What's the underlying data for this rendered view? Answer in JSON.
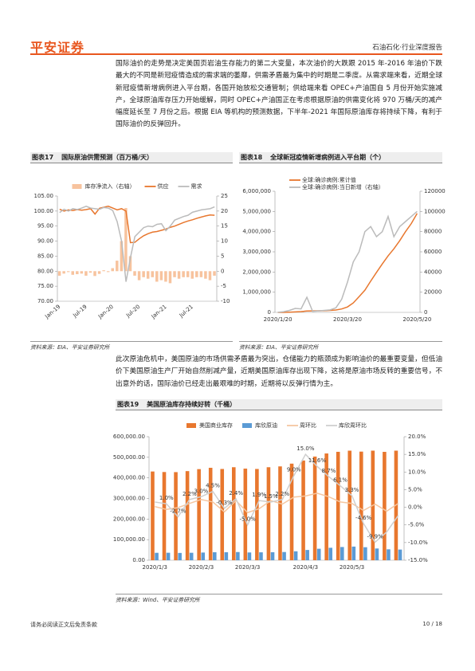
{
  "header": {
    "logo": "平安证券",
    "section": "石油石化·行业深度报告"
  },
  "paragraphs": [
    "国际油价的走势是决定美国页岩油生存能力的第二大变量，本次油价的大跌跟 2015 年-2016 年油价下跌最大的不同是新冠疫情造成的需求端的萎靡，供需矛盾最为集中的时期是二季度。从需求端来看，近期全球新冠疫情新增病例进入平台期，各国开始放松交通管制；供给端来看 OPEC+产油国自 5 月份开始实施减产，全球原油库存压力开始缓解，同时 OPEC+产油国正在考虑根据原油的供需变化将 970 万桶/天的减产幅度延长至 7 月份之后。根据 EIA 等机构的预测数据，下半年-2021 年国际原油库存将持续下降，有利于国际油价的反弹回升。",
    "此次原油危机中，美国原油的市场供需矛盾最为突出，仓储能力的瓶颈成为影响油价的最重要变量，但低油价下美国原油生产厂开始自然削减产量，近期美国原油库存出现下降，这将是原油市场反转的重要信号，不出意外的话，国际油价已经走出最艰难的时期，近期将以反弹行情为主。"
  ],
  "footer": {
    "disclaimer": "请务必阅读正文后免责条款",
    "page": "10 / 18"
  },
  "chart_data": [
    {
      "type": "combo",
      "label": "图表17",
      "title": "国际原油供需预测（百万桶/天）",
      "source": "资料来源：EIA、平安证券研究所",
      "legend": "top",
      "categories": [
        "Jan-19",
        null,
        null,
        null,
        null,
        null,
        "Jul-19",
        null,
        null,
        null,
        null,
        null,
        "Jan-20",
        null,
        null,
        null,
        null,
        null,
        "Jul-20",
        null,
        null,
        null,
        null,
        null,
        "Jan-21",
        null,
        null,
        null,
        null,
        null,
        "Jul-21",
        null,
        null,
        null,
        null,
        null
      ],
      "ylim": [
        70,
        105
      ],
      "yticks": [
        {
          "value": 70,
          "label": "70.00"
        },
        {
          "value": 75,
          "label": "75.00"
        },
        {
          "value": 80,
          "label": "80.00"
        },
        {
          "value": 85,
          "label": "85.00"
        },
        {
          "value": 90,
          "label": "90.00"
        },
        {
          "value": 95,
          "label": "95.00"
        },
        {
          "value": 100,
          "label": "100.00"
        },
        {
          "value": 105,
          "label": "105.00"
        }
      ],
      "y2lim": [
        -10,
        25
      ],
      "y2ticks": [
        -10,
        -5,
        0,
        5,
        10,
        15,
        20,
        25
      ],
      "series": [
        {
          "name": "库存净流入（右轴）",
          "type": "bar",
          "axis": "y2",
          "color": "#f7c39e",
          "values": [
            -1.5,
            -0.8,
            -0.3,
            -1.2,
            -1.0,
            -0.8,
            -1.5,
            -0.5,
            -1.6,
            -0.9,
            0.3,
            -0.3,
            1.0,
            3.5,
            10.0,
            21.0,
            5.0,
            -1.5,
            -3.0,
            -2.0,
            -2.5,
            -2.0,
            -3.5,
            -3.0,
            -3.5,
            -4.0,
            -2.0,
            -2.5,
            -2.0,
            -2.0,
            -2.5,
            -2.0,
            -2.0,
            -2.5,
            -3.0,
            -1.5
          ]
        },
        {
          "name": "供应",
          "type": "line",
          "color": "#e8772e",
          "values": [
            100.6,
            100.0,
            100.4,
            100.2,
            100.5,
            100.3,
            100.5,
            100.8,
            99.0,
            100.9,
            101.3,
            101.6,
            101.0,
            100.4,
            100.8,
            100.0,
            89.5,
            89.6,
            90.8,
            91.8,
            92.5,
            93.0,
            93.2,
            93.6,
            94.0,
            94.6,
            95.0,
            95.6,
            96.2,
            96.7,
            97.1,
            97.6,
            98.0,
            98.4,
            98.7,
            98.6
          ]
        },
        {
          "name": "需求",
          "type": "line",
          "color": "#bbbbbb",
          "values": [
            99.5,
            100.6,
            100.0,
            100.8,
            100.5,
            101.0,
            101.6,
            101.0,
            100.8,
            100.6,
            101.2,
            101.0,
            100.2,
            96.5,
            90.0,
            76.5,
            84.5,
            91.5,
            93.0,
            94.5,
            95.0,
            94.8,
            95.6,
            95.8,
            93.5,
            95.0,
            97.0,
            97.6,
            98.2,
            98.6,
            99.6,
            100.0,
            100.4,
            100.6,
            100.8,
            101.4
          ]
        }
      ]
    },
    {
      "type": "line",
      "label": "图表18",
      "title": "全球新冠疫情新增病例进入平台期（个）",
      "source": "资料来源：EIA、平安证券研究所",
      "legend": "top-left",
      "categories": [
        "2020/1/20",
        null,
        null,
        null,
        null,
        null,
        null,
        null,
        null,
        null,
        null,
        null,
        "2020/3/20",
        null,
        null,
        null,
        null,
        null,
        null,
        null,
        null,
        null,
        null,
        null,
        "2020/5/20"
      ],
      "ylim": [
        0,
        6000000
      ],
      "yticks": [
        0,
        {
          "value": 1000000,
          "label": "1,000,000"
        },
        {
          "value": 2000000,
          "label": "2,000,000"
        },
        {
          "value": 3000000,
          "label": "3,000,000"
        },
        {
          "value": 4000000,
          "label": "4,000,000"
        },
        {
          "value": 5000000,
          "label": "5,000,000"
        },
        {
          "value": 6000000,
          "label": "6,000,000"
        }
      ],
      "y2lim": [
        0,
        120000
      ],
      "y2ticks": [
        0,
        20000,
        40000,
        60000,
        80000,
        100000,
        120000
      ],
      "series": [
        {
          "name": "全球:确诊病例:累计值",
          "type": "line",
          "color": "#e8772e",
          "values": [
            300,
            2000,
            9800,
            24000,
            40000,
            67000,
            75000,
            79000,
            86000,
            97000,
            118000,
            170000,
            270000,
            470000,
            780000,
            1100000,
            1550000,
            1980000,
            2400000,
            2800000,
            3150000,
            3550000,
            4000000,
            4400000,
            4900000
          ]
        },
        {
          "name": "全球:确诊病例:当日新增（右轴）",
          "type": "line",
          "axis": "y2",
          "color": "#bbbbbb",
          "values": [
            100,
            700,
            2000,
            3900,
            3500,
            15000,
            1000,
            1500,
            2000,
            2500,
            4500,
            13000,
            30000,
            50000,
            60000,
            80000,
            85000,
            75000,
            80000,
            95000,
            75000,
            85000,
            90000,
            95000,
            100000
          ]
        }
      ]
    },
    {
      "type": "combo",
      "label": "图表19",
      "title": "美国原油库存持续好转（千桶）",
      "source": "资料来源：Wind、平安证券研究所",
      "legend": "top",
      "categories": [
        "2020/1/3",
        null,
        null,
        null,
        "2020/2/3",
        null,
        null,
        null,
        "2020/3/3",
        null,
        null,
        null,
        null,
        "2020/4/3",
        null,
        null,
        null,
        "2020/5/3",
        null,
        null,
        null,
        null
      ],
      "ylim": [
        0,
        600000
      ],
      "yticks": [
        {
          "value": 0,
          "label": "0.00"
        },
        {
          "value": 100000,
          "label": "100,000.00"
        },
        {
          "value": 200000,
          "label": "200,000.00"
        },
        {
          "value": 300000,
          "label": "300,000.00"
        },
        {
          "value": 400000,
          "label": "400,000.00"
        },
        {
          "value": 500000,
          "label": "500,000.00"
        },
        {
          "value": 600000,
          "label": "600,000.00"
        }
      ],
      "y2lim": [
        -15,
        20
      ],
      "y2ticks": [
        {
          "value": -15,
          "label": "-15.0%"
        },
        {
          "value": -10,
          "label": "-10.0%"
        },
        {
          "value": -5,
          "label": "-5.0%"
        },
        {
          "value": 0,
          "label": "0.0%"
        },
        {
          "value": 5,
          "label": "5.0%"
        },
        {
          "value": 10,
          "label": "10.0%"
        },
        {
          "value": 15,
          "label": "15.0%"
        },
        {
          "value": 20,
          "label": "20.0%"
        }
      ],
      "series": [
        {
          "name": "美国商业库存",
          "type": "bar",
          "color": "#e8772e",
          "values": [
            431000,
            428500,
            428000,
            432900,
            442500,
            449000,
            443300,
            451800,
            445000,
            443300,
            451800,
            455800,
            469200,
            484400,
            503600,
            518600,
            526600,
            532200,
            527600,
            532300,
            526400,
            532300
          ]
        },
        {
          "name": "库欣原油",
          "type": "bar",
          "color": "#5b9bd5",
          "values": [
            36000,
            36300,
            35400,
            36200,
            37300,
            38900,
            38800,
            39700,
            37700,
            38400,
            38900,
            39900,
            43400,
            49900,
            55700,
            60500,
            64200,
            66300,
            63200,
            57000,
            53000,
            51800
          ]
        },
        {
          "name": "周环比",
          "type": "line",
          "axis": "y2",
          "color": "#f5c6a0",
          "values": [
            0.2,
            -0.6,
            -0.1,
            1.1,
            2.2,
            1.5,
            -1.3,
            1.9,
            -1.5,
            -0.4,
            1.9,
            0.9,
            2.9,
            3.2,
            4.0,
            3.0,
            1.5,
            1.1,
            -0.9,
            0.9,
            -1.1,
            1.1
          ]
        },
        {
          "name": "库欣周环比",
          "type": "line",
          "axis": "y2",
          "color": "#cfcfcf",
          "values": [
            1.5,
            1.0,
            -2.7,
            2.2,
            3.0,
            4.5,
            -0.3,
            2.4,
            -5.0,
            1.9,
            1.5,
            2.2,
            9.0,
            15.0,
            11.6,
            8.7,
            6.1,
            3.3,
            -4.6,
            -9.9,
            -7.0,
            -2.3
          ],
          "value_labels": [
            null,
            "1.0%",
            "-2.7%",
            "2.2%",
            "3.0%",
            "4.5%",
            "-0.3%",
            "2.4%",
            "-5.0%",
            "1.9%",
            "1.5%",
            "2.2%",
            "9.0%",
            "15.0%",
            "11.6%",
            "8.7%",
            "6.1%",
            "3.3%",
            "-4.6%",
            "-9.9%",
            null,
            null
          ]
        }
      ]
    }
  ]
}
